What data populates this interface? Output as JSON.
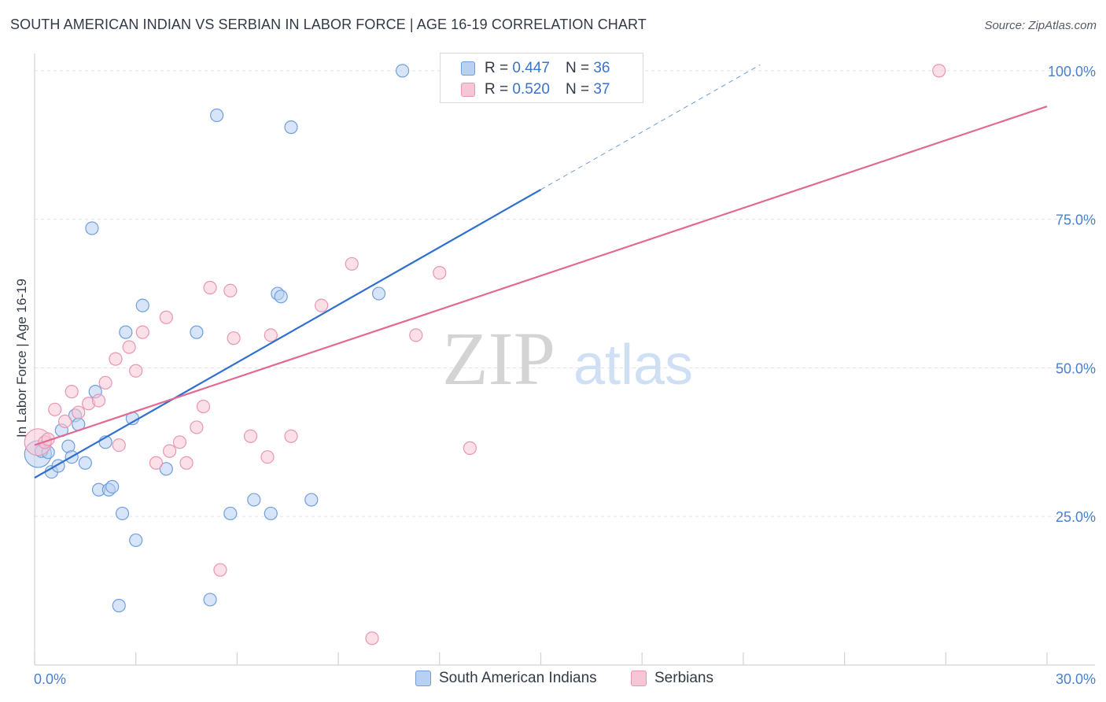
{
  "title": "SOUTH AMERICAN INDIAN VS SERBIAN IN LABOR FORCE | AGE 16-19 CORRELATION CHART",
  "source": "Source: ZipAtlas.com",
  "watermark": {
    "zip": "ZIP",
    "atlas": "atlas"
  },
  "legend_top": {
    "blue": {
      "r_label": "R =",
      "r_value": "0.447",
      "n_label": "N =",
      "n_value": "36"
    },
    "pink": {
      "r_label": "R =",
      "r_value": "0.520",
      "n_label": "N =",
      "n_value": "37"
    }
  },
  "bottom_legend": {
    "blue_label": "South American Indians",
    "pink_label": "Serbians"
  },
  "colors": {
    "blue_fill": "#b8d0f2",
    "blue_stroke": "#6f9fdc",
    "blue_line": "#2f6fcd",
    "pink_fill": "#f7c6d6",
    "pink_stroke": "#e995b2",
    "pink_line": "#e06a93",
    "tick_label": "#4a7fd0"
  },
  "chart_data": {
    "type": "scatter",
    "title": "SOUTH AMERICAN INDIAN VS SERBIAN IN LABOR FORCE | AGE 16-19 CORRELATION CHART",
    "xlabel": "",
    "ylabel": "In Labor Force | Age 16-19",
    "xlim": [
      0,
      30
    ],
    "ylim": [
      0,
      102.5
    ],
    "x_tick_labels": [
      {
        "value": 0,
        "label": "0.0%"
      },
      {
        "value": 30,
        "label": "30.0%"
      }
    ],
    "y_tick_labels": [
      {
        "value": 25,
        "label": "25.0%"
      },
      {
        "value": 50,
        "label": "50.0%"
      },
      {
        "value": 75,
        "label": "75.0%"
      },
      {
        "value": 100,
        "label": "100.0%"
      }
    ],
    "x_minor_ticks": [
      0,
      3,
      6,
      9,
      12,
      15,
      18,
      21,
      24,
      27,
      30
    ],
    "grid": true,
    "series": [
      {
        "name": "South American Indians",
        "color_key": "blue",
        "R": 0.447,
        "N": 36,
        "points": [
          {
            "x": 0.1,
            "y": 35.5,
            "big": true
          },
          {
            "x": 0.2,
            "y": 36.0
          },
          {
            "x": 0.4,
            "y": 35.8
          },
          {
            "x": 0.5,
            "y": 32.5
          },
          {
            "x": 0.7,
            "y": 33.5
          },
          {
            "x": 0.8,
            "y": 39.5
          },
          {
            "x": 1.0,
            "y": 36.8
          },
          {
            "x": 1.1,
            "y": 35.0
          },
          {
            "x": 1.2,
            "y": 42.0
          },
          {
            "x": 1.3,
            "y": 40.5
          },
          {
            "x": 1.5,
            "y": 34.0
          },
          {
            "x": 1.7,
            "y": 73.5
          },
          {
            "x": 1.8,
            "y": 46.0
          },
          {
            "x": 1.9,
            "y": 29.5
          },
          {
            "x": 2.1,
            "y": 37.5
          },
          {
            "x": 2.2,
            "y": 29.5
          },
          {
            "x": 2.3,
            "y": 30.0
          },
          {
            "x": 2.5,
            "y": 10.0
          },
          {
            "x": 2.6,
            "y": 25.5
          },
          {
            "x": 2.7,
            "y": 56.0
          },
          {
            "x": 2.9,
            "y": 41.5
          },
          {
            "x": 3.0,
            "y": 21.0
          },
          {
            "x": 3.2,
            "y": 60.5
          },
          {
            "x": 3.9,
            "y": 33.0
          },
          {
            "x": 4.8,
            "y": 56.0
          },
          {
            "x": 5.2,
            "y": 11.0
          },
          {
            "x": 5.4,
            "y": 92.5
          },
          {
            "x": 5.8,
            "y": 25.5
          },
          {
            "x": 6.5,
            "y": 27.8
          },
          {
            "x": 7.0,
            "y": 25.5
          },
          {
            "x": 7.2,
            "y": 62.5
          },
          {
            "x": 7.3,
            "y": 62.0
          },
          {
            "x": 7.6,
            "y": 90.5
          },
          {
            "x": 8.2,
            "y": 27.8
          },
          {
            "x": 10.2,
            "y": 62.5
          },
          {
            "x": 10.9,
            "y": 100.0
          }
        ],
        "trend": {
          "x0": 0,
          "y0": 31.5,
          "x1": 15,
          "y1": 80.0,
          "dash_x1": 21.5,
          "dash_y1": 101.0
        }
      },
      {
        "name": "Serbians",
        "color_key": "pink",
        "R": 0.52,
        "N": 37,
        "points": [
          {
            "x": 0.1,
            "y": 37.5,
            "big": true
          },
          {
            "x": 0.3,
            "y": 37.5
          },
          {
            "x": 0.4,
            "y": 38.0
          },
          {
            "x": 0.6,
            "y": 43.0
          },
          {
            "x": 0.9,
            "y": 41.0
          },
          {
            "x": 1.1,
            "y": 46.0
          },
          {
            "x": 1.3,
            "y": 42.5
          },
          {
            "x": 1.6,
            "y": 44.0
          },
          {
            "x": 1.9,
            "y": 44.5
          },
          {
            "x": 2.1,
            "y": 47.5
          },
          {
            "x": 2.4,
            "y": 51.5
          },
          {
            "x": 2.5,
            "y": 37.0
          },
          {
            "x": 2.8,
            "y": 53.5
          },
          {
            "x": 3.0,
            "y": 49.5
          },
          {
            "x": 3.2,
            "y": 56.0
          },
          {
            "x": 3.6,
            "y": 34.0
          },
          {
            "x": 3.9,
            "y": 58.5
          },
          {
            "x": 4.0,
            "y": 36.0
          },
          {
            "x": 4.3,
            "y": 37.5
          },
          {
            "x": 4.5,
            "y": 34.0
          },
          {
            "x": 4.8,
            "y": 40.0
          },
          {
            "x": 5.0,
            "y": 43.5
          },
          {
            "x": 5.2,
            "y": 63.5
          },
          {
            "x": 5.5,
            "y": 16.0
          },
          {
            "x": 5.8,
            "y": 63.0
          },
          {
            "x": 5.9,
            "y": 55.0
          },
          {
            "x": 6.4,
            "y": 38.5
          },
          {
            "x": 6.9,
            "y": 35.0
          },
          {
            "x": 7.0,
            "y": 55.5
          },
          {
            "x": 7.6,
            "y": 38.5
          },
          {
            "x": 8.5,
            "y": 60.5
          },
          {
            "x": 9.4,
            "y": 67.5
          },
          {
            "x": 10.0,
            "y": 4.5
          },
          {
            "x": 11.3,
            "y": 55.5
          },
          {
            "x": 12.0,
            "y": 66.0
          },
          {
            "x": 12.9,
            "y": 36.5
          },
          {
            "x": 26.8,
            "y": 100.0
          }
        ],
        "trend": {
          "x0": 0,
          "y0": 37.0,
          "x1": 30,
          "y1": 94.0
        }
      }
    ]
  }
}
